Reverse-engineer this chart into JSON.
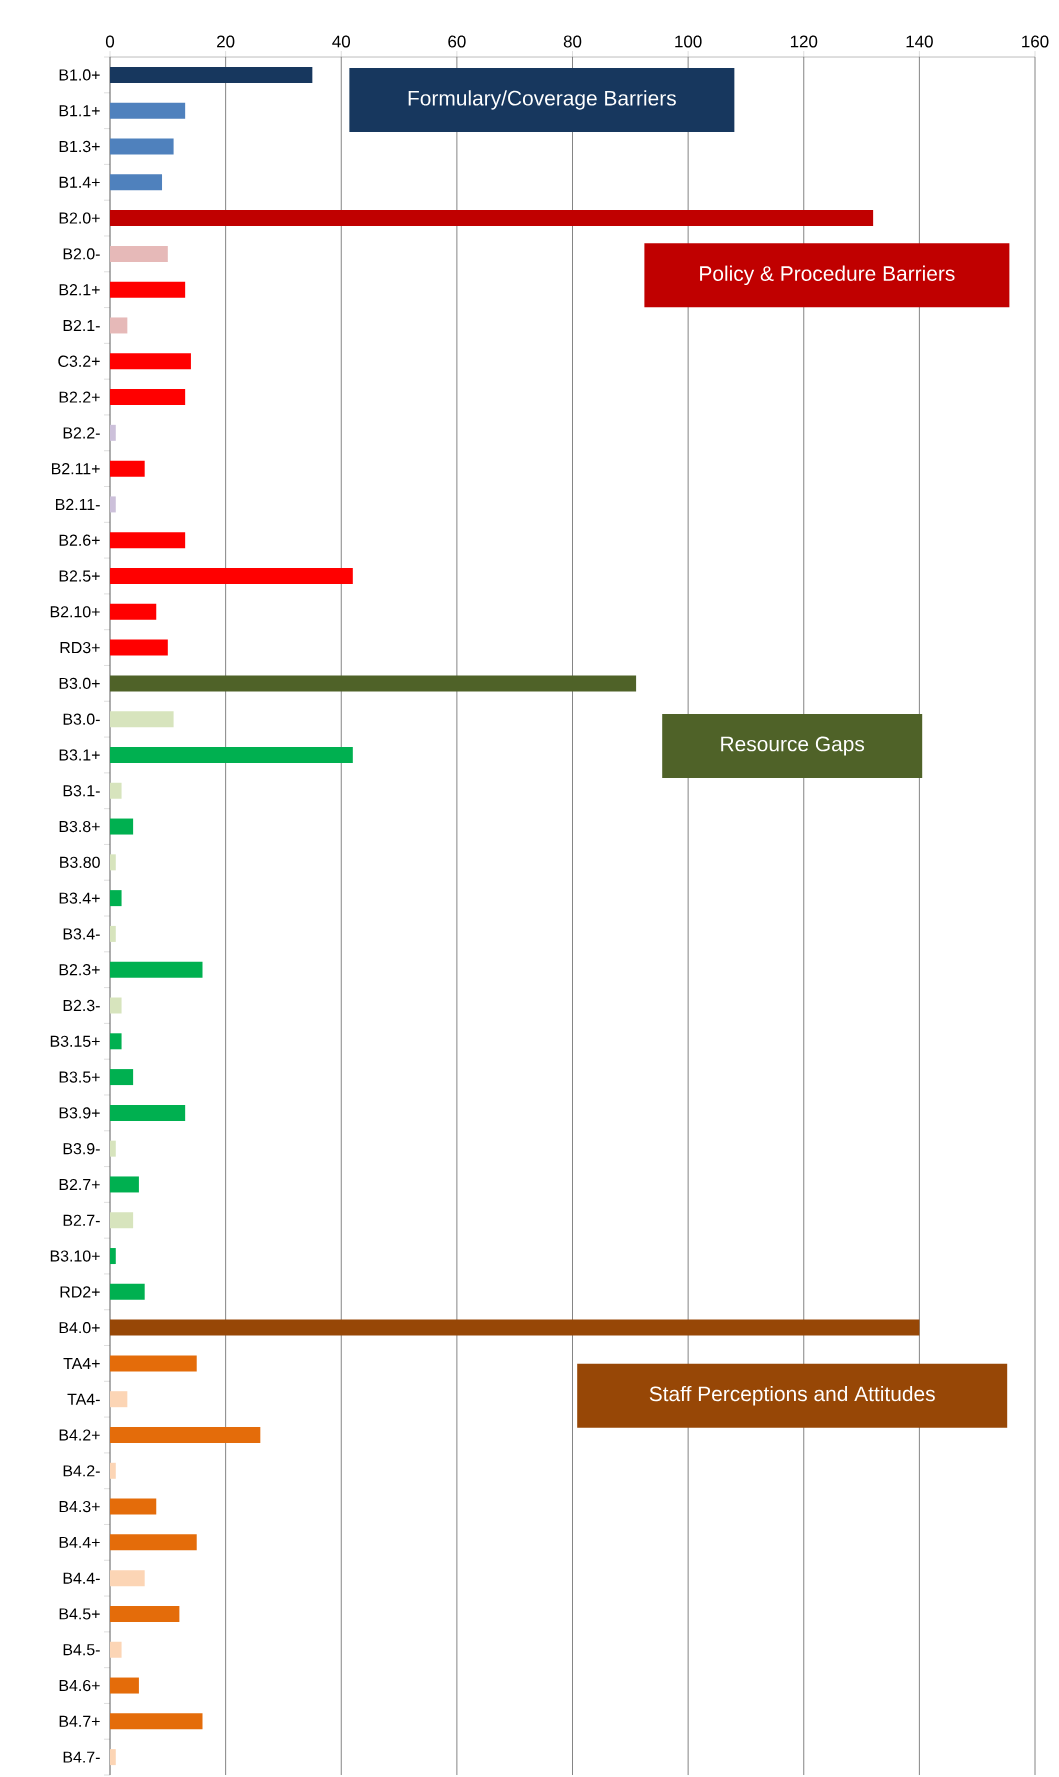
{
  "chart_data": {
    "type": "bar",
    "orientation": "horizontal",
    "categories": [
      "B1.0+",
      "B1.1+",
      "B1.3+",
      "B1.4+",
      "B2.0+",
      "B2.0-",
      "B2.1+",
      "B2.1-",
      "C3.2+",
      "B2.2+",
      "B2.2-",
      "B2.11+",
      "B2.11-",
      "B2.6+",
      "B2.5+",
      "B2.10+",
      "RD3+",
      "B3.0+",
      "B3.0-",
      "B3.1+",
      "B3.1-",
      "B3.8+",
      "B3.80",
      "B3.4+",
      "B3.4-",
      "B2.3+",
      "B2.3-",
      "B3.15+",
      "B3.5+",
      "B3.9+",
      "B3.9-",
      "B2.7+",
      "B2.7-",
      "B3.10+",
      "RD2+",
      "B4.0+",
      "TA4+",
      "TA4-",
      "B4.2+",
      "B4.2-",
      "B4.3+",
      "B4.4+",
      "B4.4-",
      "B4.5+",
      "B4.5-",
      "B4.6+",
      "B4.7+",
      "B4.7-"
    ],
    "values": [
      35,
      13,
      11,
      9,
      132,
      10,
      13,
      3,
      14,
      13,
      1,
      6,
      1,
      13,
      42,
      8,
      10,
      91,
      11,
      42,
      2,
      4,
      1,
      2,
      1,
      16,
      2,
      2,
      4,
      13,
      1,
      5,
      4,
      1,
      6,
      140,
      15,
      3,
      26,
      1,
      8,
      15,
      6,
      12,
      2,
      5,
      16,
      1
    ],
    "colors": [
      "#17375e",
      "#4f81bd",
      "#4f81bd",
      "#4f81bd",
      "#c00000",
      "#e6b9b8",
      "#ff0000",
      "#e6b9b8",
      "#ff0000",
      "#ff0000",
      "#ccc0da",
      "#ff0000",
      "#ccc0da",
      "#ff0000",
      "#ff0000",
      "#ff0000",
      "#ff0000",
      "#4f6228",
      "#d7e4bd",
      "#00b050",
      "#d7e4bd",
      "#00b050",
      "#d7e4bd",
      "#00b050",
      "#d7e4bd",
      "#00b050",
      "#d7e4bd",
      "#00b050",
      "#00b050",
      "#00b050",
      "#d7e4bd",
      "#00b050",
      "#d7e4bd",
      "#00b050",
      "#00b050",
      "#974706",
      "#e46c0a",
      "#fcd5b5",
      "#e46c0a",
      "#fcd5b5",
      "#e46c0a",
      "#e46c0a",
      "#fcd5b5",
      "#e46c0a",
      "#fcd5b5",
      "#e46c0a",
      "#e46c0a",
      "#fcd5b5"
    ],
    "xlim": [
      0,
      160
    ],
    "xticks": [
      0,
      20,
      40,
      60,
      80,
      100,
      120,
      140,
      160
    ],
    "grid": "x",
    "annotations": [
      "Formulary/Coverage Barriers",
      "Policy & Procedure Barriers",
      "Resource Gaps",
      "Staff Perceptions and Attitudes"
    ]
  }
}
